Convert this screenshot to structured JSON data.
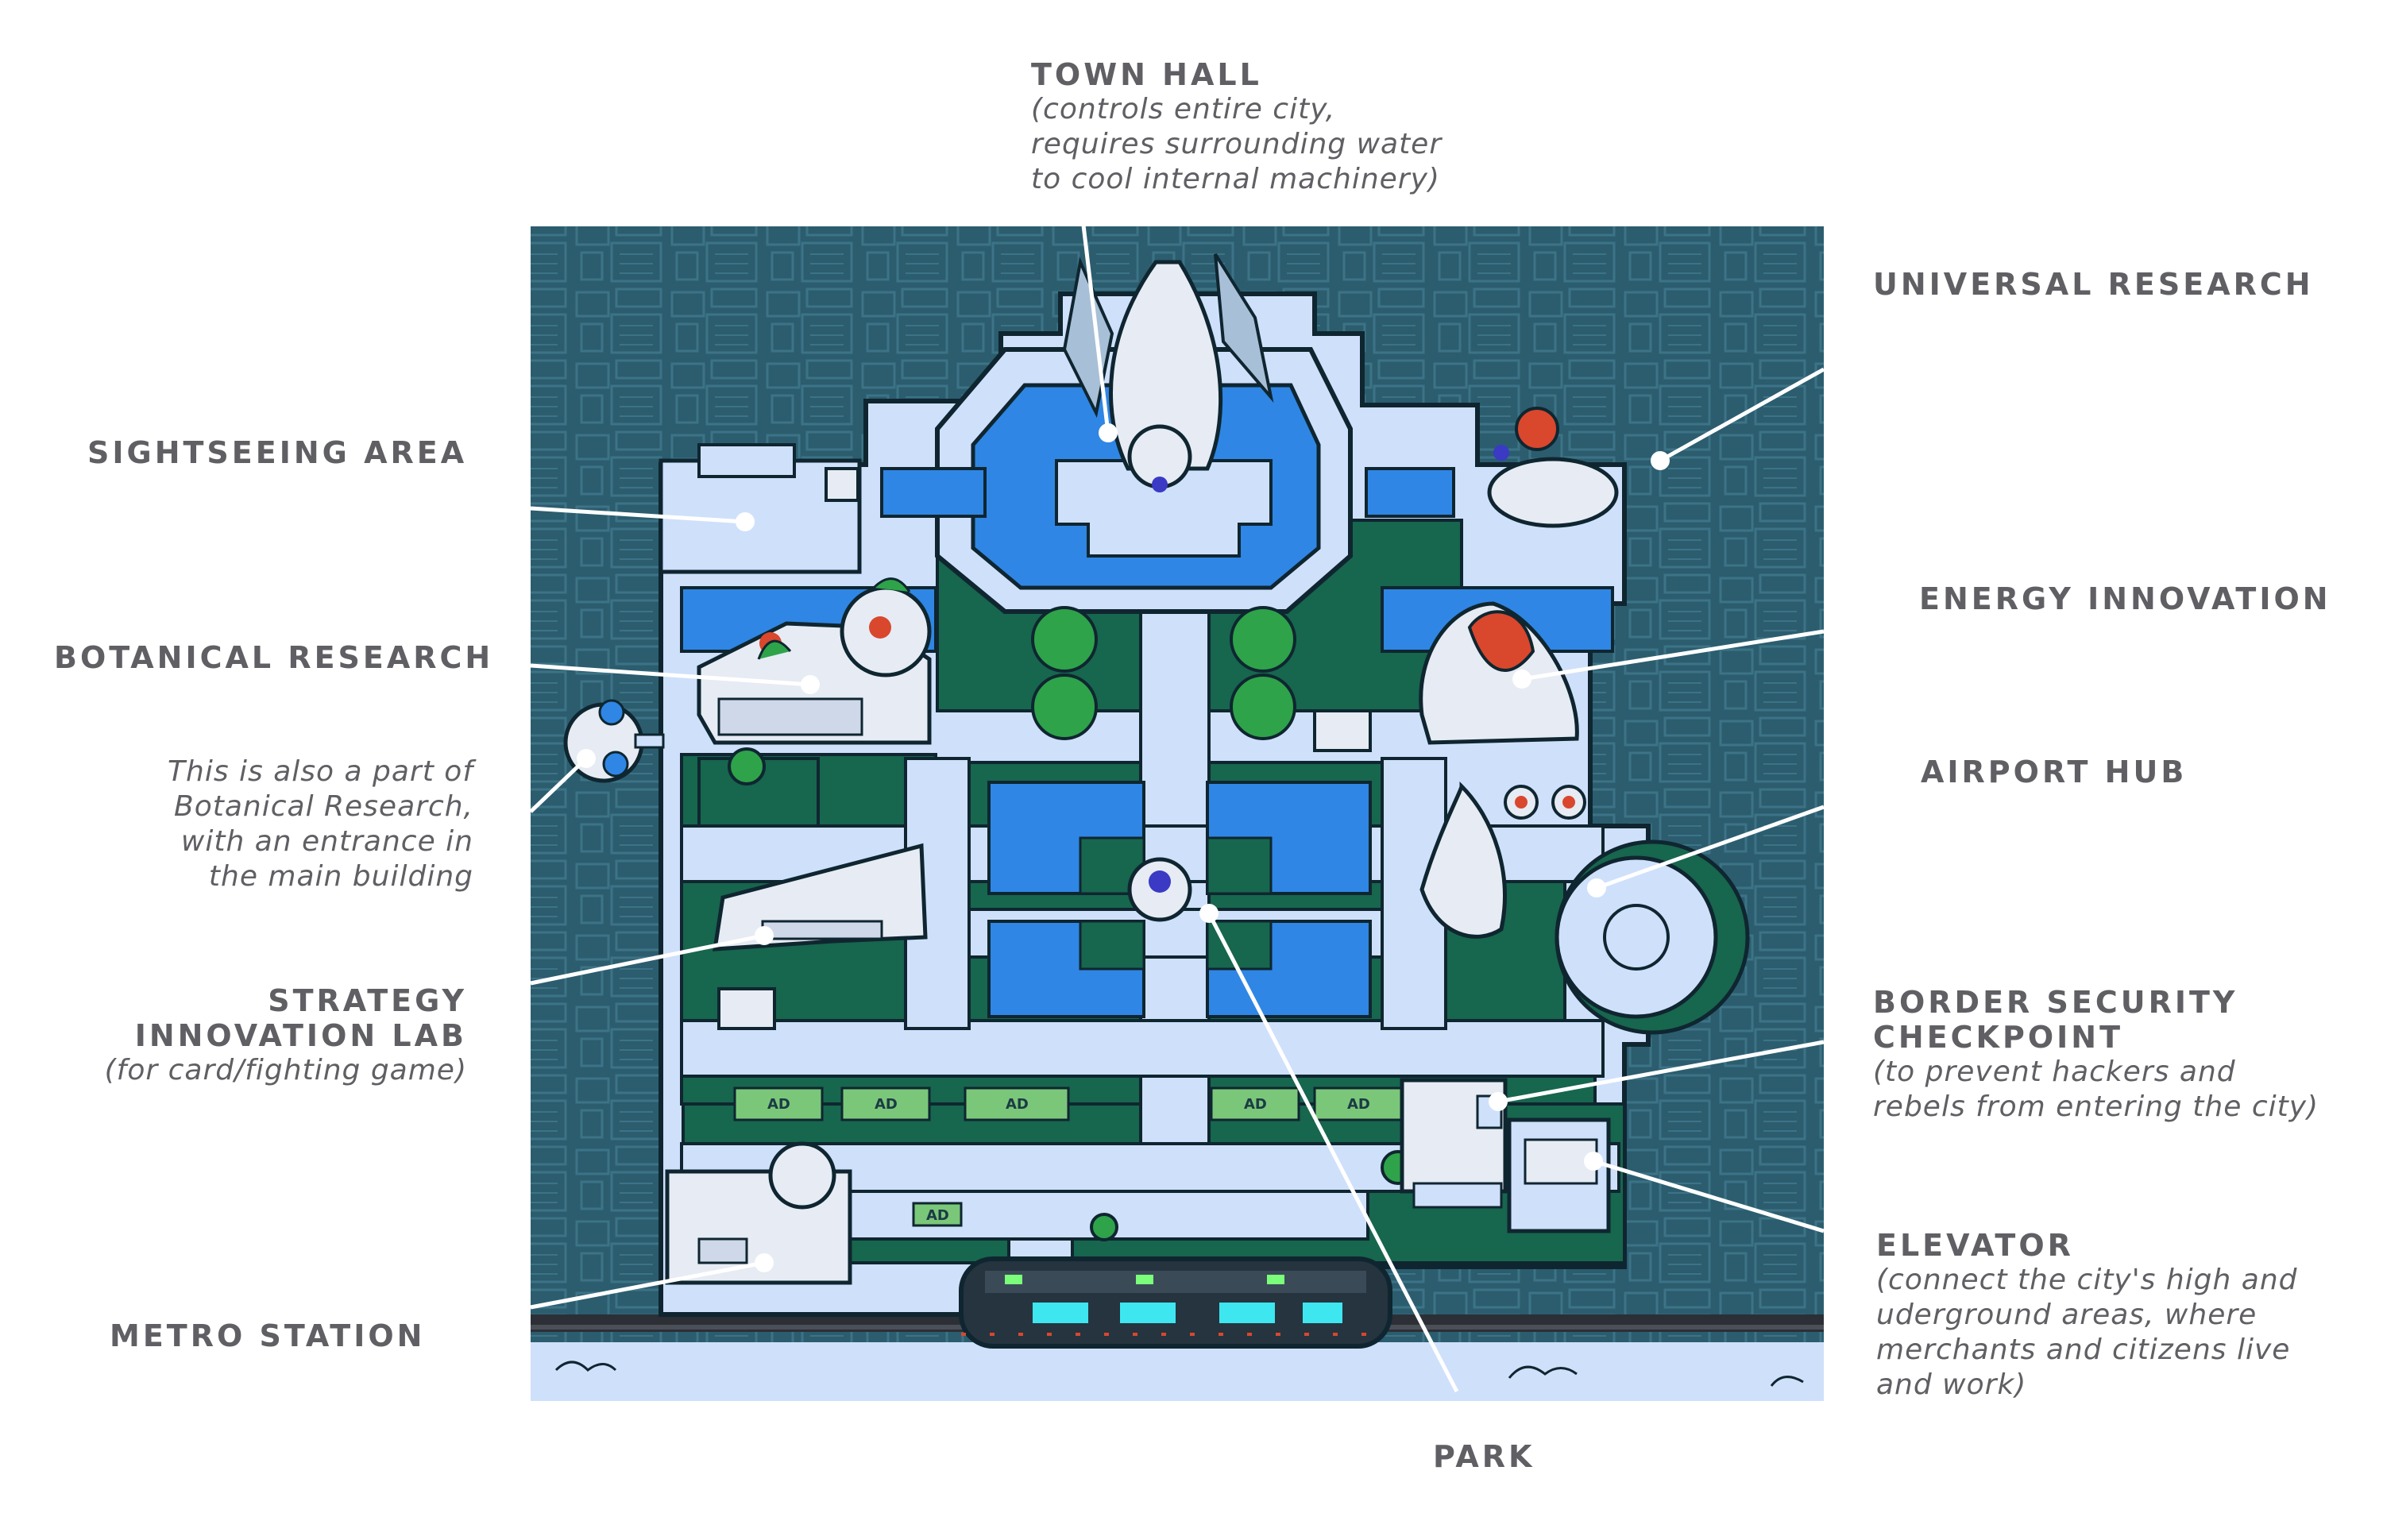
{
  "labels": {
    "town_hall": {
      "title": "TOWN HALL",
      "lines": [
        "(controls entire city,",
        "requires surrounding water",
        "to cool internal machinery)"
      ]
    },
    "universal_research": {
      "title": "UNIVERSAL RESEARCH"
    },
    "sightseeing_area": {
      "title": "SIGHTSEEING AREA"
    },
    "energy_innovation": {
      "title": "ENERGY INNOVATION"
    },
    "botanical_research": {
      "title": "BOTANICAL RESEARCH"
    },
    "botanical_note": {
      "lines": [
        "This is also a part of",
        "Botanical Research,",
        "with an entrance in",
        "the main building"
      ]
    },
    "airport_hub": {
      "title": "AIRPORT HUB"
    },
    "strategy_lab": {
      "lines": [
        "STRATEGY",
        "INNOVATION LAB"
      ],
      "note": "(for card/fighting game)"
    },
    "border_security": {
      "lines": [
        "BORDER SECURITY",
        "CHECKPOINT"
      ],
      "notes": [
        "(to prevent hackers and",
        "rebels from entering the city)"
      ]
    },
    "elevator": {
      "title": "ELEVATOR",
      "notes": [
        "(connect the city's high and",
        "uderground areas, where",
        "merchants and citizens live",
        "and work)"
      ]
    },
    "metro_station": {
      "title": "METRO STATION"
    },
    "park": {
      "title": "PARK"
    }
  },
  "map": {
    "ad_sign": "AD",
    "colors": {
      "background": "#2b5d6f",
      "platform": "#cfe0fb",
      "grass": "#17664e",
      "water": "#2f86e4",
      "outline": "#0f2630",
      "building": "#e6ebf4",
      "accent_red": "#d9472d",
      "accent_blue": "#3a3ac4",
      "train": "#25343f",
      "train_light": "#3ee6f0",
      "leader_line": "#ffffff"
    }
  }
}
